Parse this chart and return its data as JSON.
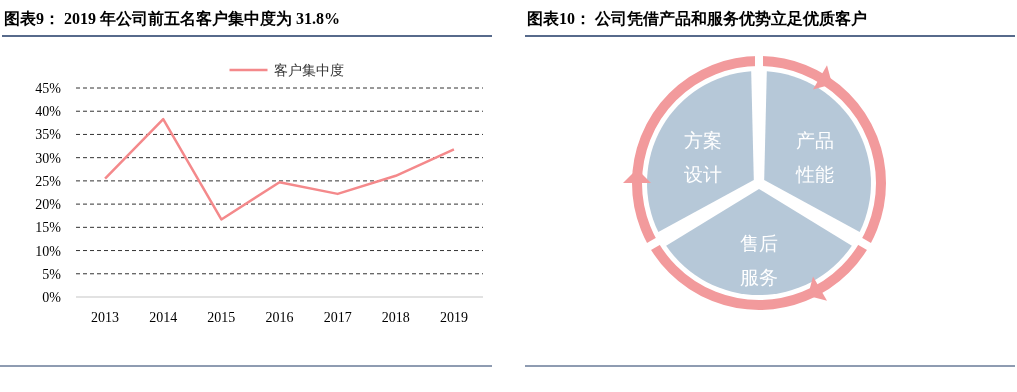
{
  "chart_data": [
    {
      "type": "line",
      "title": "图表9： 2019 年公司前五名客户集中度为 31.8%",
      "categories": [
        "2013",
        "2014",
        "2015",
        "2016",
        "2017",
        "2018",
        "2019"
      ],
      "series": [
        {
          "name": "客户集中度",
          "color": "#f4898b",
          "values": [
            25.5,
            38.3,
            16.7,
            24.7,
            22.2,
            26.1,
            31.8
          ]
        }
      ],
      "ylim": [
        0,
        45
      ],
      "yticks": [
        {
          "value": 0,
          "label": "0%"
        },
        {
          "value": 5,
          "label": "5%"
        },
        {
          "value": 10,
          "label": "10%"
        },
        {
          "value": 15,
          "label": "15%"
        },
        {
          "value": 20,
          "label": "20%"
        },
        {
          "value": 25,
          "label": "25%"
        },
        {
          "value": 30,
          "label": "30%"
        },
        {
          "value": 35,
          "label": "35%"
        },
        {
          "value": 40,
          "label": "40%"
        },
        {
          "value": 45,
          "label": "45%"
        }
      ],
      "grid": "y",
      "legend": "top",
      "marker": "none",
      "line_style": "solid"
    },
    {
      "type": "other",
      "title": "图表10： 公司凭借产品和服务优势立足优质客户",
      "annotations": [
        "方案设计",
        "产品性能",
        "售后服务"
      ]
    }
  ]
}
